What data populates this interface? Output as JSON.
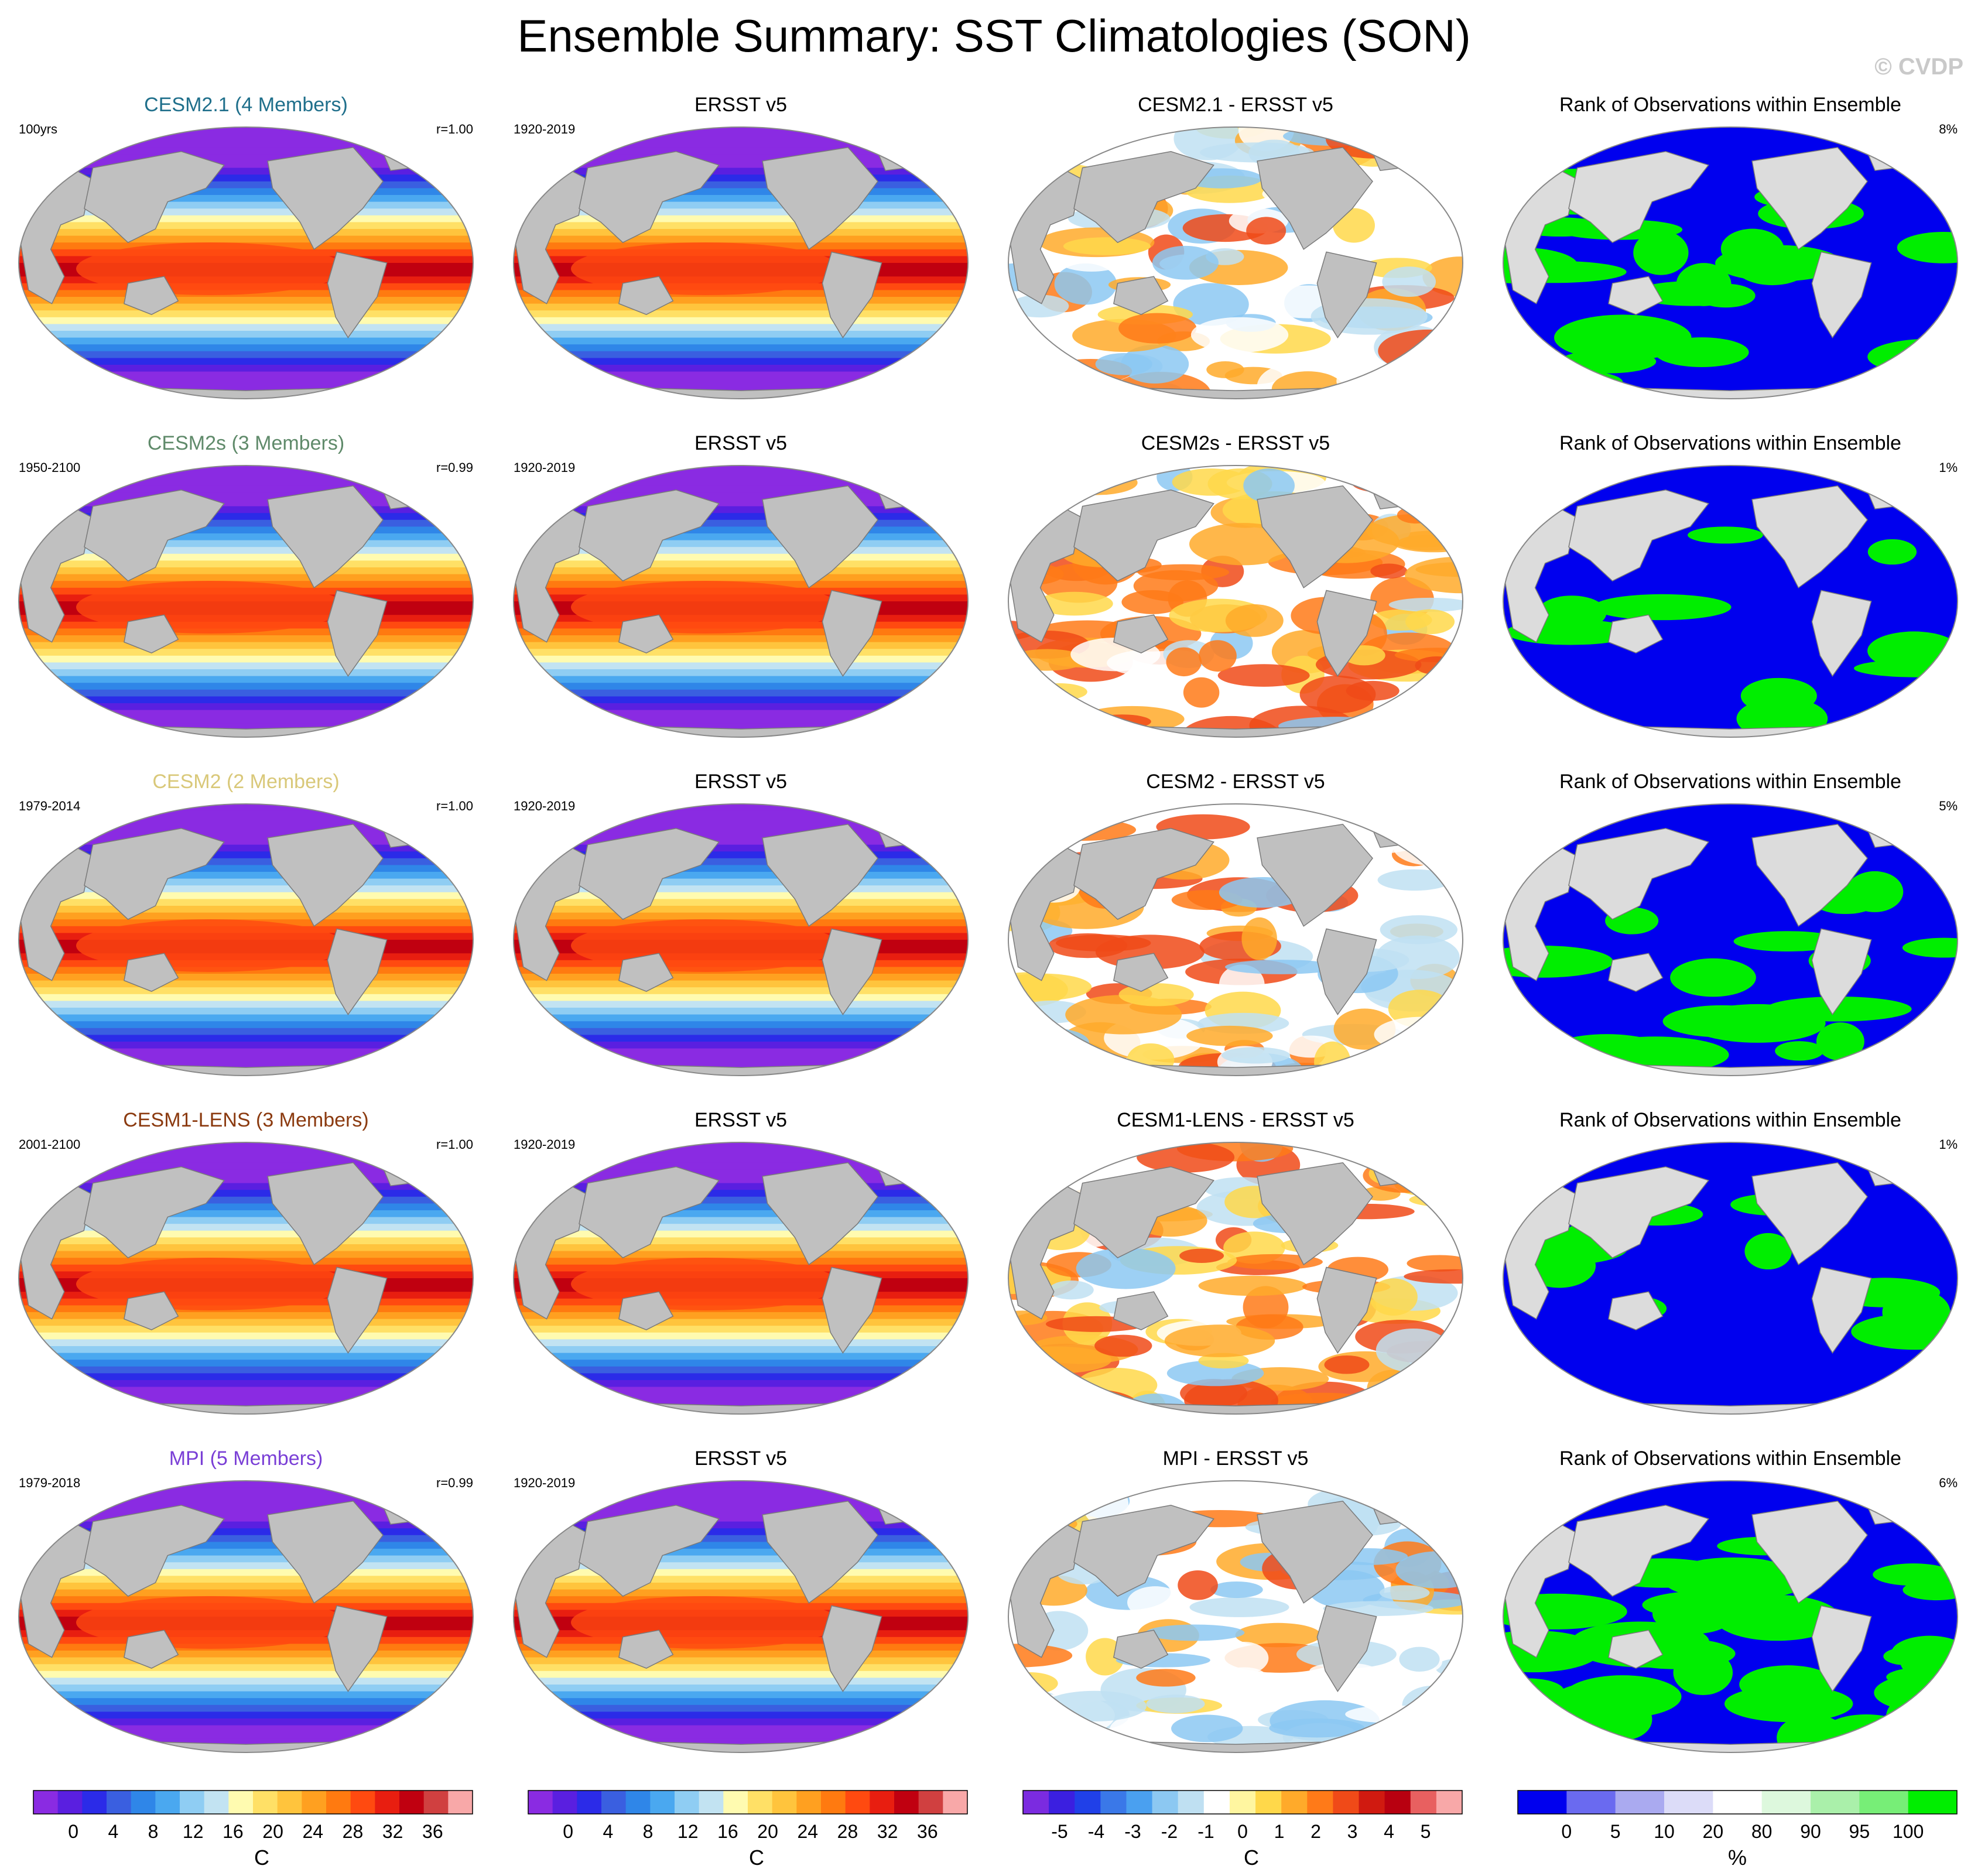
{
  "title": "Ensemble Summary: SST Climatologies (SON)",
  "watermark": "© CVDP",
  "colors": {
    "land": "#c0c0c0",
    "land_light": "#dcdcdc",
    "sst_scale": [
      "#8a2be2",
      "#5a1fe0",
      "#2b2be8",
      "#3a5fe0",
      "#2f86e8",
      "#4aa8f0",
      "#8fcdf3",
      "#c2e3f2",
      "#fffbb0",
      "#ffe066",
      "#ffc43d",
      "#ffa020",
      "#ff7a10",
      "#ff4a10",
      "#e81e10",
      "#c00010",
      "#d04040",
      "#f8a8a8"
    ],
    "diff_scale": [
      "#7b2be0",
      "#3b1fe0",
      "#2040e8",
      "#3a78e8",
      "#4aa0f0",
      "#8cc8f2",
      "#bfe0f2",
      "#ffffff",
      "#fff6a0",
      "#ffd84a",
      "#ffaa2a",
      "#ff7a18",
      "#f04a18",
      "#d01a10",
      "#b80010",
      "#e86060",
      "#f8a8a8"
    ],
    "rank_scale": [
      "#0000ee",
      "#6a6af0",
      "#aaaaf0",
      "#dcdcf8",
      "#ffffff",
      "#ddf8dd",
      "#aaf0aa",
      "#77ee77",
      "#00ee00"
    ]
  },
  "rows": [
    {
      "model": {
        "title": "CESM2.1 (4 Members)",
        "color": "#1f6f8b",
        "period": "100yrs",
        "corr": "r=1.00"
      },
      "obs": {
        "title": "ERSST v5",
        "period": "1920-2019"
      },
      "diff": {
        "title": "CESM2.1 - ERSST v5",
        "bias": "mixed"
      },
      "rank": {
        "title": "Rank of Observations within Ensemble",
        "pct": "8%",
        "green_frac": 0.35
      }
    },
    {
      "model": {
        "title": "CESM2s (3 Members)",
        "color": "#5f8a6a",
        "period": "1950-2100",
        "corr": "r=0.99"
      },
      "obs": {
        "title": "ERSST v5",
        "period": "1920-2019"
      },
      "diff": {
        "title": "CESM2s - ERSST v5",
        "bias": "warm"
      },
      "rank": {
        "title": "Rank of Observations within Ensemble",
        "pct": "1%",
        "green_frac": 0.12
      }
    },
    {
      "model": {
        "title": "CESM2 (2 Members)",
        "color": "#d9c879",
        "period": "1979-2014",
        "corr": "r=1.00"
      },
      "obs": {
        "title": "ERSST v5",
        "period": "1920-2019"
      },
      "diff": {
        "title": "CESM2 - ERSST v5",
        "bias": "mixed"
      },
      "rank": {
        "title": "Rank of Observations within Ensemble",
        "pct": "5%",
        "green_frac": 0.25
      }
    },
    {
      "model": {
        "title": "CESM1-LENS (3 Members)",
        "color": "#8b3a0f",
        "period": "2001-2100",
        "corr": "r=1.00"
      },
      "obs": {
        "title": "ERSST v5",
        "period": "1920-2019"
      },
      "diff": {
        "title": "CESM1-LENS - ERSST v5",
        "bias": "warm"
      },
      "rank": {
        "title": "Rank of Observations within Ensemble",
        "pct": "1%",
        "green_frac": 0.1
      }
    },
    {
      "model": {
        "title": "MPI (5 Members)",
        "color": "#7a3fd6",
        "period": "1979-2018",
        "corr": "r=0.99"
      },
      "obs": {
        "title": "ERSST v5",
        "period": "1920-2019"
      },
      "diff": {
        "title": "MPI - ERSST v5",
        "bias": "cool"
      },
      "rank": {
        "title": "Rank of Observations within Ensemble",
        "pct": "6%",
        "green_frac": 0.65
      }
    }
  ],
  "colorbars": [
    {
      "ticks": [
        "0",
        "4",
        "8",
        "12",
        "16",
        "20",
        "24",
        "28",
        "32",
        "36"
      ],
      "unit": "C",
      "scale": "sst"
    },
    {
      "ticks": [
        "0",
        "4",
        "8",
        "12",
        "16",
        "20",
        "24",
        "28",
        "32",
        "36"
      ],
      "unit": "C",
      "scale": "sst"
    },
    {
      "ticks": [
        "-5",
        "-4",
        "-3",
        "-2",
        "-1",
        "0",
        "1",
        "2",
        "3",
        "4",
        "5"
      ],
      "unit": "C",
      "scale": "diff"
    },
    {
      "ticks": [
        "0",
        "5",
        "10",
        "20",
        "80",
        "90",
        "95",
        "100"
      ],
      "unit": "%",
      "scale": "rank"
    }
  ]
}
